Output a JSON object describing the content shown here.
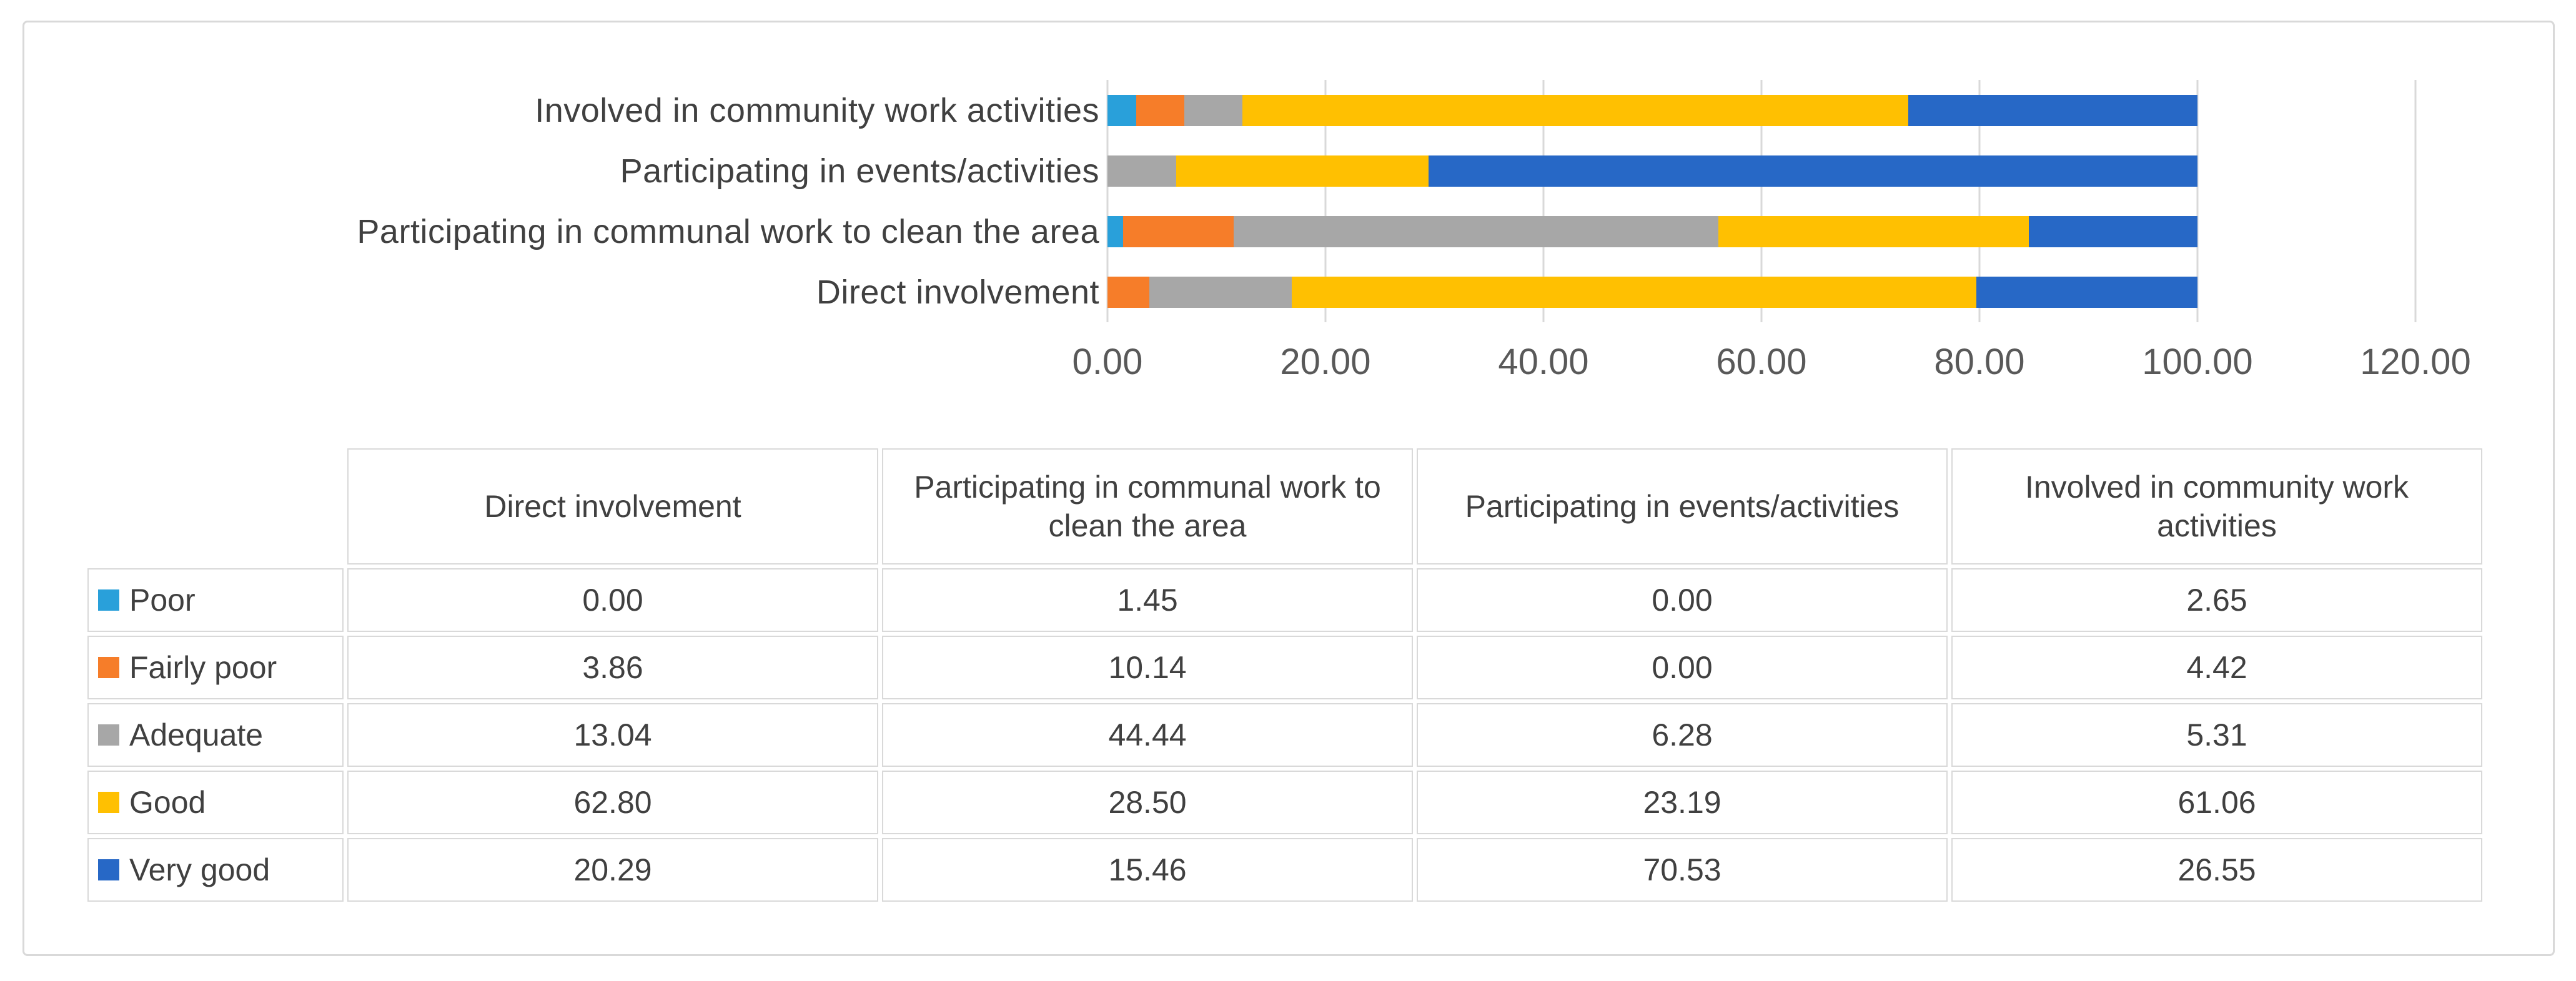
{
  "chart_data": {
    "type": "bar",
    "orientation": "horizontal",
    "stacked": true,
    "title": "",
    "xlabel": "",
    "ylabel": "",
    "xlim": [
      0,
      120
    ],
    "gridlines": true,
    "x_ticks": [
      "0.00",
      "20.00",
      "40.00",
      "60.00",
      "80.00",
      "100.00",
      "120.00"
    ],
    "categories": [
      "Involved in community work activities",
      "Participating in events/activities",
      "Participating in communal work to clean the area",
      "Direct involvement"
    ],
    "series": [
      {
        "name": "Poor",
        "color": "#29a0da",
        "values": [
          2.65,
          0.0,
          1.45,
          0.0
        ]
      },
      {
        "name": "Fairly poor",
        "color": "#f67d29",
        "values": [
          4.42,
          0.0,
          10.14,
          3.86
        ]
      },
      {
        "name": "Adequate",
        "color": "#a7a7a7",
        "values": [
          5.31,
          6.28,
          44.44,
          13.04
        ]
      },
      {
        "name": "Good",
        "color": "#ffc001",
        "values": [
          61.06,
          23.19,
          28.5,
          62.8
        ]
      },
      {
        "name": "Very good",
        "color": "#2768c6",
        "values": [
          26.55,
          70.53,
          15.46,
          20.29
        ]
      }
    ]
  },
  "table": {
    "header": [
      "Direct involvement",
      "Participating in communal work to clean the area",
      "Participating in events/activities",
      "Involved in community work activities"
    ],
    "rows": [
      {
        "label": "Poor",
        "values": [
          "0.00",
          "1.45",
          "0.00",
          "2.65"
        ]
      },
      {
        "label": "Fairly poor",
        "values": [
          "3.86",
          "10.14",
          "0.00",
          "4.42"
        ]
      },
      {
        "label": "Adequate",
        "values": [
          "13.04",
          "44.44",
          "6.28",
          "5.31"
        ]
      },
      {
        "label": "Good",
        "values": [
          "62.80",
          "28.50",
          "23.19",
          "61.06"
        ]
      },
      {
        "label": "Very good",
        "values": [
          "20.29",
          "15.46",
          "70.53",
          "26.55"
        ]
      }
    ]
  },
  "colors": {
    "grid": "#d9d9d9",
    "axis_text": "#595959",
    "label_text": "#404040"
  }
}
